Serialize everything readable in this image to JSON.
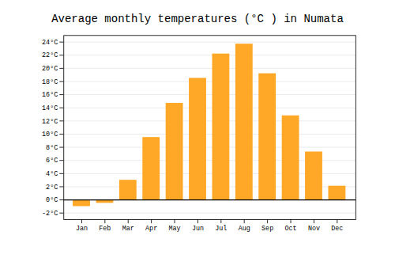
{
  "chart_data": {
    "type": "bar",
    "title": "Average monthly temperatures (°C ) in Numata",
    "categories": [
      "Jan",
      "Feb",
      "Mar",
      "Apr",
      "May",
      "Jun",
      "Jul",
      "Aug",
      "Sep",
      "Oct",
      "Nov",
      "Dec"
    ],
    "values": [
      -1.0,
      -0.5,
      3.0,
      9.5,
      14.7,
      18.5,
      22.2,
      23.7,
      19.2,
      12.8,
      7.3,
      2.1
    ],
    "color": "#FFA726",
    "ylim": [
      -3,
      25
    ],
    "yticks": [
      {
        "value": -2,
        "label": "-2°C"
      },
      {
        "value": 0,
        "label": "0°C"
      },
      {
        "value": 2,
        "label": "2°C"
      },
      {
        "value": 4,
        "label": "4°C"
      },
      {
        "value": 6,
        "label": "6°C"
      },
      {
        "value": 8,
        "label": "8°C"
      },
      {
        "value": 10,
        "label": "10°C"
      },
      {
        "value": 12,
        "label": "12°C"
      },
      {
        "value": 14,
        "label": "14°C"
      },
      {
        "value": 16,
        "label": "16°C"
      },
      {
        "value": 18,
        "label": "18°C"
      },
      {
        "value": 20,
        "label": "20°C"
      },
      {
        "value": 22,
        "label": "22°C"
      },
      {
        "value": 24,
        "label": "24°C"
      }
    ],
    "grid": true
  }
}
